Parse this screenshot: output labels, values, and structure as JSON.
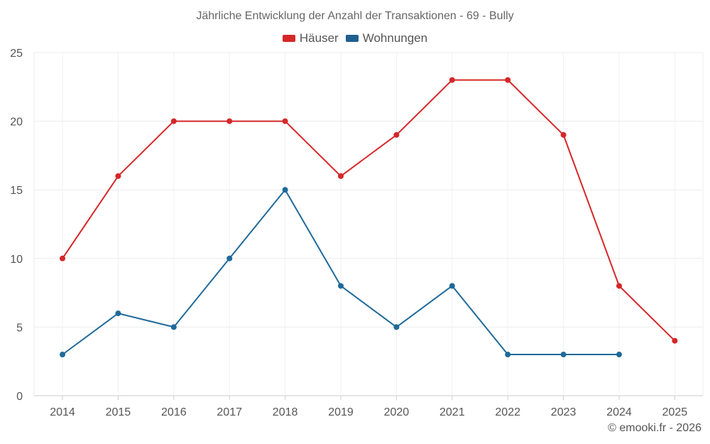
{
  "chart_data": {
    "type": "line",
    "title": "Jährliche Entwicklung der Anzahl der Transaktionen - 69 - Bully",
    "xlabel": "",
    "ylabel": "",
    "categories": [
      "2014",
      "2015",
      "2016",
      "2017",
      "2018",
      "2019",
      "2020",
      "2021",
      "2022",
      "2023",
      "2024",
      "2025"
    ],
    "ylim": [
      0,
      25
    ],
    "yticks": [
      0,
      5,
      10,
      15,
      20,
      25
    ],
    "grid": true,
    "legend_position": "top-center",
    "series": [
      {
        "name": "Häuser",
        "color": "#d62728",
        "values": [
          10,
          16,
          20,
          20,
          20,
          16,
          19,
          23,
          23,
          19,
          8,
          4
        ]
      },
      {
        "name": "Wohnungen",
        "color": "#1f77b4",
        "values": [
          3,
          6,
          5,
          10,
          15,
          8,
          5,
          8,
          3,
          3,
          3,
          null
        ]
      }
    ]
  },
  "credit": "© emooki.fr - 2026"
}
